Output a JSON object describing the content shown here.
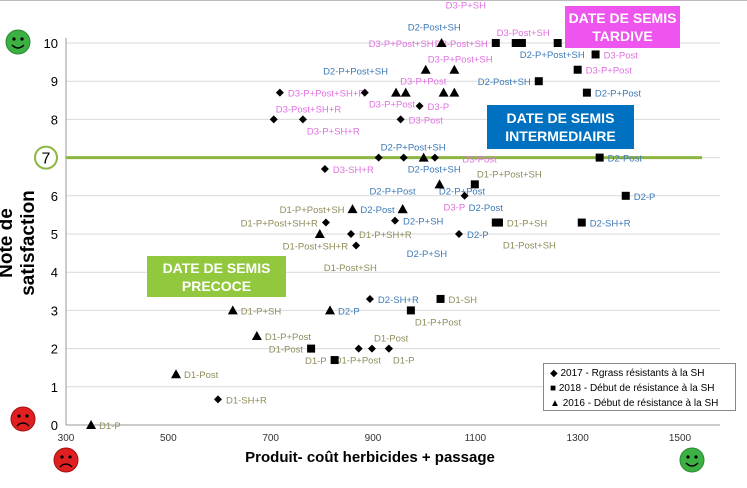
{
  "chart_data": {
    "type": "scatter",
    "xlabel": "Produit- coût herbicides + passage",
    "ylabel": "Note de satisfaction",
    "xlim": [
      300,
      1500
    ],
    "ylim": [
      0,
      10
    ],
    "xticks": [
      300,
      500,
      700,
      900,
      1100,
      1300,
      1500
    ],
    "yticks": [
      0,
      1,
      2,
      3,
      4,
      5,
      6,
      7,
      8,
      9,
      10
    ],
    "grid": "horizontal",
    "reference_line": {
      "y": 7,
      "label": "7",
      "color": "#8db542"
    },
    "legend_placement": "bottom-right",
    "series": [
      {
        "name": "2017 - Rgrass résistants à la SH",
        "marker": "diamond",
        "points": [
          [
            718,
            8.7,
            "D3-P+Post+SH+R",
            "right"
          ],
          [
            884,
            8.7,
            "D3-P+Post",
            "below"
          ],
          [
            991,
            8.35,
            "D3-P",
            "right"
          ],
          [
            706,
            8.0,
            "D3-Post+SH+R",
            "above"
          ],
          [
            763,
            8.0,
            "D3-P+SH+R",
            "right"
          ],
          [
            954,
            8.0,
            "D3-Post",
            "right"
          ],
          [
            911,
            7,
            "D2-P+Post+SH",
            "above"
          ],
          [
            960,
            7,
            "D2-Post+SH",
            "below"
          ],
          [
            1021,
            7,
            "D2-P+Post",
            "below"
          ],
          [
            806,
            6.7,
            "D3-SH+R",
            "right"
          ],
          [
            1079,
            6.0,
            "D2-Post",
            "right"
          ],
          [
            943,
            5.35,
            "D2-P+SH",
            "right"
          ],
          [
            808,
            5.3,
            "D1-P+Post+SH+R",
            "left"
          ],
          [
            857,
            5.0,
            "D1-P+SH+R",
            "right"
          ],
          [
            1068,
            5.0,
            "D2-P",
            "right"
          ],
          [
            867,
            4.7,
            "D1-Post+SH+R",
            "right"
          ],
          [
            894,
            3.3,
            "D2-SH+R",
            "right"
          ],
          [
            872,
            2.0,
            "",
            ""
          ],
          [
            898,
            2.0,
            "D1-Post",
            "above"
          ],
          [
            931,
            2.0,
            "D1-P",
            "right"
          ],
          [
            931,
            2.0,
            "D1-P+Post",
            "below"
          ],
          [
            597,
            0.67,
            "D1-SH+R",
            "right"
          ]
        ]
      },
      {
        "name": "2018 - Début de résistance à la SH",
        "marker": "square",
        "points": [
          [
            1140,
            10,
            "D3-Post+SH",
            "left"
          ],
          [
            1179,
            10,
            "D2-P+Post+SH",
            "above"
          ],
          [
            1191,
            10,
            "",
            ""
          ],
          [
            1261,
            10,
            "D3-Post+SH",
            "above"
          ],
          [
            1335,
            9.7,
            "D3-Post",
            "right"
          ],
          [
            1300,
            9.3,
            "D3-P+Post",
            "right"
          ],
          [
            1224,
            9.0,
            "D2-Post+SH",
            "right"
          ],
          [
            1318,
            8.7,
            "D2-P+Post",
            "right"
          ],
          [
            1343,
            7,
            "D2-Post",
            "right"
          ],
          [
            1099,
            6.3,
            "D1-P+Post+SH",
            "right"
          ],
          [
            1394,
            6.0,
            "D2-P",
            "right"
          ],
          [
            1140,
            5.3,
            "",
            ""
          ],
          [
            1146,
            5.3,
            "D1-P+SH",
            "right"
          ],
          [
            1146,
            5.3,
            "D1-Post+SH",
            "below"
          ],
          [
            1308,
            5.3,
            "D2-SH+R",
            "right"
          ],
          [
            1032,
            3.3,
            "D1-SH",
            "right"
          ],
          [
            974,
            3.0,
            "D1-P+Post",
            "right"
          ],
          [
            779,
            2.0,
            "D1-Post",
            "right"
          ],
          [
            825,
            1.7,
            "D1-P",
            "right"
          ]
        ]
      },
      {
        "name": "2016 - Début de résistance à la SH",
        "marker": "triangle",
        "points": [
          [
            1034,
            10,
            "D3-P+Post+SH",
            "above"
          ],
          [
            1003,
            9.3,
            "D3-P+Post+SH",
            "above"
          ],
          [
            1059,
            9.3,
            "D3-P+Post",
            "right"
          ],
          [
            945,
            8.7,
            "D2-P+Post+SH",
            "above"
          ],
          [
            964,
            8.7,
            "D2-Post+SH",
            "below"
          ],
          [
            1038,
            8.7,
            "D3-P+SH",
            "above"
          ],
          [
            1059,
            8.7,
            "D3-Post",
            "right"
          ],
          [
            999,
            7,
            "D2-P+Post",
            "above"
          ],
          [
            1030,
            6.3,
            "D3-P",
            "right"
          ],
          [
            860,
            5.65,
            "D1-P+Post+SH",
            "above"
          ],
          [
            958,
            5.65,
            "D2-Post",
            "below"
          ],
          [
            958,
            5.65,
            "D2-P+SH",
            "above"
          ],
          [
            796,
            5.0,
            "D1-Post+SH",
            "below"
          ],
          [
            626,
            3.0,
            "D1-P+SH",
            "right"
          ],
          [
            816,
            3.0,
            "D2-P",
            "right"
          ],
          [
            673,
            2.33,
            "D1-P+Post",
            "right"
          ],
          [
            515,
            1.33,
            "D1-Post",
            "right"
          ],
          [
            349,
            0,
            "D1-P",
            "right"
          ]
        ]
      }
    ],
    "label_colors": {
      "D1": "#8f8c5c",
      "D2": "#3d7ab8",
      "D3": "#e070e0"
    },
    "annotations": [
      {
        "text": "DATE DE SEMIS\nTARDIVE",
        "color": "#ee55ee"
      },
      {
        "text": "DATE DE SEMIS\nINTERMEDIAIRE",
        "color": "#0070c0"
      },
      {
        "text": "DATE DE SEMIS\nPRECOCE",
        "color": "#92c83e"
      }
    ],
    "icons": {
      "high_satisfaction": "happy-face-green",
      "low_satisfaction": "sad-face-red",
      "low_cost": "sad-face-red",
      "high_cost": "happy-face-green"
    }
  }
}
